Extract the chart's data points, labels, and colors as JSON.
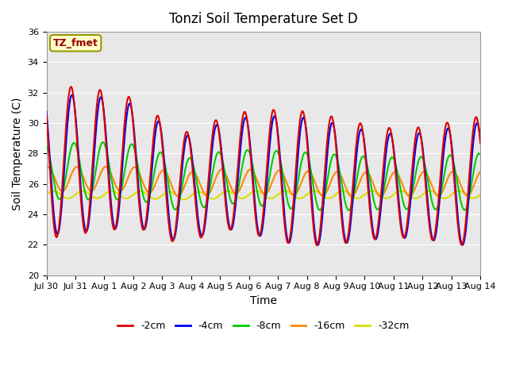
{
  "title": "Tonzi Soil Temperature Set D",
  "xlabel": "Time",
  "ylabel": "Soil Temperature (C)",
  "ylim": [
    20,
    36
  ],
  "yticks": [
    20,
    22,
    24,
    26,
    28,
    30,
    32,
    34,
    36
  ],
  "legend_label": "TZ_fmet",
  "series_labels": [
    "-2cm",
    "-4cm",
    "-8cm",
    "-16cm",
    "-32cm"
  ],
  "series_colors": [
    "#dd0000",
    "#0000ee",
    "#00cc00",
    "#ff8800",
    "#dddd00"
  ],
  "line_width": 1.5,
  "background_color": "#e8e8e8",
  "n_days": 15,
  "n_points_per_day": 48,
  "xtick_labels": [
    "Jul 30",
    "Jul 31",
    "Aug 1",
    "Aug 2",
    "Aug 3",
    "Aug 4",
    "Aug 5",
    "Aug 6",
    "Aug 7",
    "Aug 8",
    "Aug 9",
    "Aug 10",
    "Aug 11",
    "Aug 12",
    "Aug 13",
    "Aug 14"
  ]
}
